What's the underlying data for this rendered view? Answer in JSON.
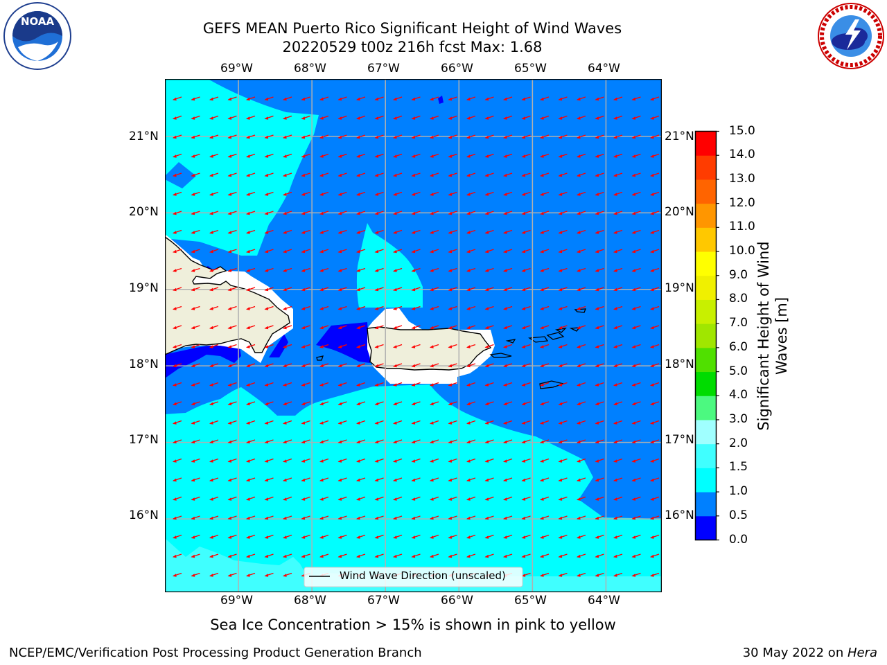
{
  "title": {
    "line1": "GEFS MEAN Puerto Rico Significant Height of Wind Waves",
    "line2": "20220529 t00z 216h fcst   Max: 1.68"
  },
  "footer": {
    "left": "NCEP/EMC/Verification Post Processing Product Generation Branch",
    "right_date": "30 May 2022 on ",
    "right_host": "Hera"
  },
  "note": "Sea Ice Concentration > 15% is shown in pink to yellow",
  "legend": {
    "label": "Wind Wave Direction (unscaled)"
  },
  "logos": {
    "left": "noaa-logo",
    "right": "nws-logo"
  },
  "map": {
    "lon_ticks": [
      "69°W",
      "68°W",
      "67°W",
      "66°W",
      "65°W",
      "64°W"
    ],
    "lat_ticks": [
      "21°N",
      "20°N",
      "19°N",
      "18°N",
      "17°N",
      "16°N"
    ],
    "lon_range": [
      -70.0,
      -63.25
    ],
    "lat_range": [
      15.05,
      21.75
    ],
    "land_color": "#efefdb",
    "arrow_color": "#ff0000",
    "arrow_direction": "from east-northeast toward west-southwest"
  },
  "colorbar": {
    "label_line1": "Significant Height of Wind",
    "label_line2": "Waves [m]",
    "levels": [
      "0.0",
      "0.5",
      "1.0",
      "1.5",
      "2.0",
      "3.0",
      "4.0",
      "5.0",
      "6.0",
      "7.0",
      "8.0",
      "9.0",
      "10.0",
      "11.0",
      "12.0",
      "13.0",
      "14.0",
      "15.0"
    ],
    "colors": [
      "#0000ff",
      "#0080ff",
      "#00ffff",
      "#40ffff",
      "#a0ffff",
      "#4cf980",
      "#00dc00",
      "#50e000",
      "#a0e600",
      "#c8f000",
      "#f0f000",
      "#ffff00",
      "#ffc800",
      "#ff9600",
      "#ff6400",
      "#ff3c00",
      "#ff0000"
    ]
  }
}
